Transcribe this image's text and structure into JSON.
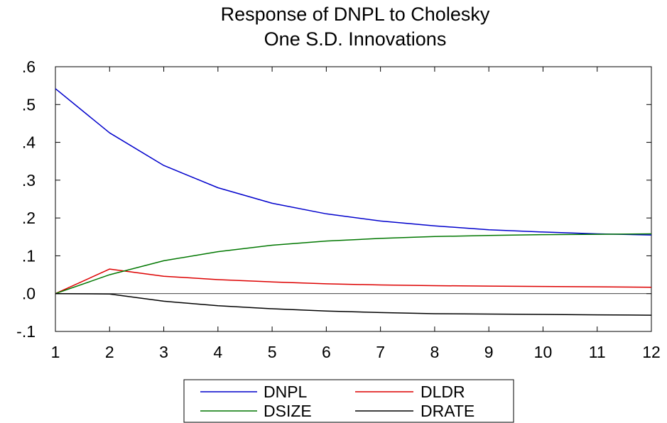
{
  "chart_data": {
    "type": "line",
    "title_lines": [
      "Response of DNPL to Cholesky",
      "One S.D. Innovations"
    ],
    "xlabel": "",
    "ylabel": "",
    "x": [
      1,
      2,
      3,
      4,
      5,
      6,
      7,
      8,
      9,
      10,
      11,
      12
    ],
    "x_tick_labels": [
      "1",
      "2",
      "3",
      "4",
      "5",
      "6",
      "7",
      "8",
      "9",
      "10",
      "11",
      "12"
    ],
    "xlim": [
      1,
      12
    ],
    "ylim": [
      -0.1,
      0.6
    ],
    "y_ticks": [
      -0.1,
      0.0,
      0.1,
      0.2,
      0.3,
      0.4,
      0.5,
      0.6
    ],
    "y_tick_labels": [
      "-.1",
      ".0",
      ".1",
      ".2",
      ".3",
      ".4",
      ".5",
      ".6"
    ],
    "zero_line": true,
    "grid": false,
    "legend_position": "bottom-center",
    "series": [
      {
        "name": "DNPL",
        "color": "#0000cc",
        "values": [
          0.542,
          0.425,
          0.339,
          0.28,
          0.239,
          0.211,
          0.192,
          0.179,
          0.169,
          0.163,
          0.158,
          0.155
        ]
      },
      {
        "name": "DLDR",
        "color": "#dd0000",
        "values": [
          0.0,
          0.065,
          0.046,
          0.037,
          0.031,
          0.026,
          0.023,
          0.021,
          0.02,
          0.019,
          0.018,
          0.017
        ]
      },
      {
        "name": "DSIZE",
        "color": "#007700",
        "values": [
          0.0,
          0.05,
          0.087,
          0.111,
          0.128,
          0.139,
          0.146,
          0.151,
          0.154,
          0.156,
          0.157,
          0.158
        ]
      },
      {
        "name": "DRATE",
        "color": "#000000",
        "values": [
          0.0,
          -0.001,
          -0.02,
          -0.032,
          -0.04,
          -0.046,
          -0.05,
          -0.053,
          -0.054,
          -0.055,
          -0.056,
          -0.057
        ]
      }
    ]
  }
}
